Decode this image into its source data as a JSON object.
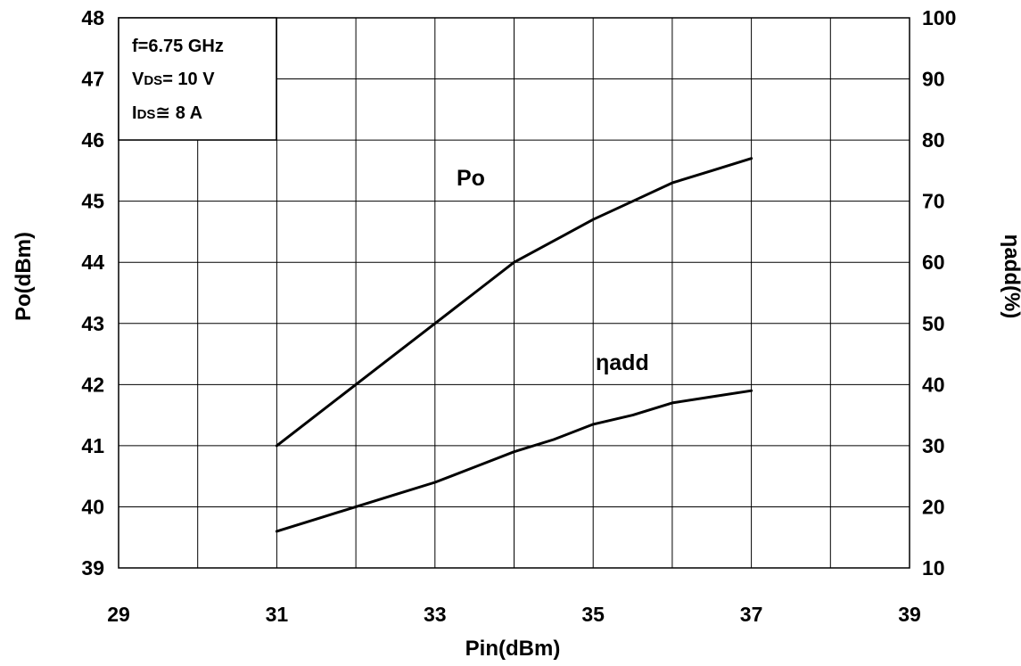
{
  "chart_data": {
    "type": "line",
    "xlabel": "Pin(dBm)",
    "ylabel_left": "Po(dBm)",
    "ylabel_right": "ηadd(%)",
    "xlim": [
      29,
      39
    ],
    "ylim_left": [
      39,
      48
    ],
    "ylim_right": [
      10,
      100
    ],
    "x_ticks": [
      "29",
      "31",
      "33",
      "35",
      "37",
      "39"
    ],
    "y_left_ticks": [
      "39",
      "40",
      "41",
      "42",
      "43",
      "44",
      "45",
      "46",
      "47",
      "48"
    ],
    "y_right_ticks": [
      "10",
      "20",
      "30",
      "40",
      "50",
      "60",
      "70",
      "80",
      "90",
      "100"
    ],
    "grid": true,
    "annotation": {
      "line1": "f=6.75 GHz",
      "line2_prefix": "V",
      "line2_sub": "DS",
      "line2_value": "= 10 V",
      "line3_prefix": "I",
      "line3_sub": "DS",
      "line3_value": "≅ 8 A"
    },
    "series": [
      {
        "name": "Po",
        "axis": "left",
        "x": [
          31,
          31.5,
          32,
          32.5,
          33,
          33.5,
          34,
          34.5,
          35,
          35.5,
          36,
          36.5,
          37
        ],
        "y": [
          41.0,
          41.5,
          42.0,
          42.5,
          43.0,
          43.5,
          44.0,
          44.35,
          44.7,
          45.0,
          45.3,
          45.5,
          45.7
        ]
      },
      {
        "name": "ηadd",
        "axis": "right",
        "x": [
          31,
          31.5,
          32,
          32.5,
          33,
          33.5,
          34,
          34.5,
          35,
          35.5,
          36,
          36.5,
          37
        ],
        "y": [
          16,
          18,
          20,
          22,
          24,
          26.5,
          29,
          31,
          33.5,
          35,
          37,
          38,
          39
        ]
      }
    ]
  }
}
